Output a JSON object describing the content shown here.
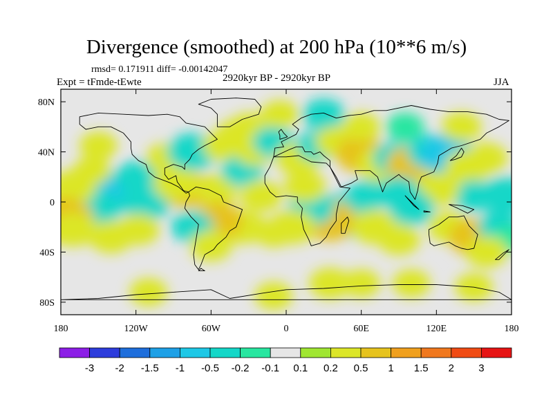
{
  "chart_data": {
    "type": "heatmap",
    "title": "Divergence (smoothed) at 200 hPa (10**6 m/s)",
    "stats_text": "rmsd= 0.171911 diff= -0.00142047",
    "experiment_text": "Expt = tFmde-tEwte",
    "period_text": "2920kyr BP - 2920kyr BP",
    "season": "JJA",
    "x_range": [
      -180,
      180
    ],
    "y_range": [
      -90,
      90
    ],
    "x_ticks": [
      {
        "value": -180,
        "label": "180"
      },
      {
        "value": -120,
        "label": "120W"
      },
      {
        "value": -60,
        "label": "60W"
      },
      {
        "value": 0,
        "label": "0"
      },
      {
        "value": 60,
        "label": "60E"
      },
      {
        "value": 120,
        "label": "120E"
      },
      {
        "value": 180,
        "label": "180"
      }
    ],
    "y_ticks": [
      {
        "value": 80,
        "label": "80N"
      },
      {
        "value": 40,
        "label": "40N"
      },
      {
        "value": 0,
        "label": "0"
      },
      {
        "value": -40,
        "label": "40S"
      },
      {
        "value": -80,
        "label": "80S"
      }
    ],
    "colorbar": {
      "levels": [
        "-3",
        "-2",
        "-1.5",
        "-1",
        "-0.5",
        "-0.2",
        "-0.1",
        "0.1",
        "0.2",
        "0.5",
        "1",
        "1.5",
        "2",
        "3"
      ],
      "colors": [
        "#8c1ee6",
        "#2d3cdc",
        "#1e6edc",
        "#1ea0e6",
        "#1ec8e6",
        "#14d7c8",
        "#28e6a0",
        "#e6e6e6",
        "#a0e632",
        "#dce628",
        "#e6c31e",
        "#f0a01e",
        "#f0781e",
        "#f04b14",
        "#e61414"
      ]
    },
    "fields": [
      {
        "lon": -140,
        "lat": 8,
        "value": -0.6
      },
      {
        "lon": -150,
        "lat": -5,
        "value": -0.4
      },
      {
        "lon": -112,
        "lat": 0,
        "value": -0.5
      },
      {
        "lon": -120,
        "lat": 20,
        "value": -0.3
      },
      {
        "lon": -80,
        "lat": 10,
        "value": 0.5
      },
      {
        "lon": -88,
        "lat": 15,
        "value": 0.4
      },
      {
        "lon": -55,
        "lat": 10,
        "value": 0.3
      },
      {
        "lon": -170,
        "lat": 12,
        "value": 0.4
      },
      {
        "lon": -178,
        "lat": -15,
        "value": 0.8
      },
      {
        "lon": -170,
        "lat": -22,
        "value": 0.4
      },
      {
        "lon": -140,
        "lat": -28,
        "value": 0.35
      },
      {
        "lon": -118,
        "lat": -22,
        "value": 0.3
      },
      {
        "lon": -155,
        "lat": 25,
        "value": 0.2
      },
      {
        "lon": -150,
        "lat": 45,
        "value": 0.2
      },
      {
        "lon": -95,
        "lat": 35,
        "value": 0.3
      },
      {
        "lon": -75,
        "lat": 40,
        "value": -0.5
      },
      {
        "lon": -50,
        "lat": 45,
        "value": 0.3
      },
      {
        "lon": -40,
        "lat": 55,
        "value": 0.2
      },
      {
        "lon": -30,
        "lat": 60,
        "value": 0.2
      },
      {
        "lon": -35,
        "lat": 25,
        "value": -0.3
      },
      {
        "lon": -25,
        "lat": 40,
        "value": 0.2
      },
      {
        "lon": -10,
        "lat": 48,
        "value": -0.3
      },
      {
        "lon": -5,
        "lat": 70,
        "value": 0.2
      },
      {
        "lon": 30,
        "lat": 70,
        "value": -0.3
      },
      {
        "lon": 10,
        "lat": 35,
        "value": 0.4
      },
      {
        "lon": 25,
        "lat": 45,
        "value": -0.3
      },
      {
        "lon": 40,
        "lat": 48,
        "value": 0.3
      },
      {
        "lon": 60,
        "lat": 38,
        "value": 0.5
      },
      {
        "lon": 75,
        "lat": 30,
        "value": 0.4
      },
      {
        "lon": 88,
        "lat": 35,
        "value": -0.4
      },
      {
        "lon": 100,
        "lat": 30,
        "value": 0.5
      },
      {
        "lon": 115,
        "lat": 40,
        "value": -0.4
      },
      {
        "lon": 128,
        "lat": 38,
        "value": -0.6
      },
      {
        "lon": 145,
        "lat": 28,
        "value": 0.4
      },
      {
        "lon": 160,
        "lat": 35,
        "value": 0.3
      },
      {
        "lon": 140,
        "lat": 60,
        "value": 0.25
      },
      {
        "lon": 60,
        "lat": 60,
        "value": 0.2
      },
      {
        "lon": 95,
        "lat": 60,
        "value": -0.2
      },
      {
        "lon": 175,
        "lat": 5,
        "value": -0.5
      },
      {
        "lon": 150,
        "lat": 5,
        "value": -0.3
      },
      {
        "lon": 120,
        "lat": 10,
        "value": 0.4
      },
      {
        "lon": 100,
        "lat": -5,
        "value": -0.4
      },
      {
        "lon": 90,
        "lat": 8,
        "value": -0.3
      },
      {
        "lon": 65,
        "lat": 5,
        "value": -0.3
      },
      {
        "lon": 55,
        "lat": -15,
        "value": -0.4
      },
      {
        "lon": 45,
        "lat": -8,
        "value": -0.5
      },
      {
        "lon": 35,
        "lat": -15,
        "value": 0.6
      },
      {
        "lon": 20,
        "lat": -5,
        "value": -0.4
      },
      {
        "lon": 15,
        "lat": 12,
        "value": 0.3
      },
      {
        "lon": 5,
        "lat": -20,
        "value": 0.4
      },
      {
        "lon": -10,
        "lat": -25,
        "value": 0.2
      },
      {
        "lon": -20,
        "lat": 5,
        "value": 0.3
      },
      {
        "lon": -35,
        "lat": -20,
        "value": 0.4
      },
      {
        "lon": -55,
        "lat": -15,
        "value": 0.5
      },
      {
        "lon": -75,
        "lat": -20,
        "value": -0.3
      },
      {
        "lon": -60,
        "lat": -35,
        "value": 0.3
      },
      {
        "lon": 70,
        "lat": -20,
        "value": 0.4
      },
      {
        "lon": 90,
        "lat": -30,
        "value": 0.3
      },
      {
        "lon": 130,
        "lat": -20,
        "value": 0.3
      },
      {
        "lon": 150,
        "lat": -28,
        "value": 0.5
      },
      {
        "lon": 170,
        "lat": -20,
        "value": -0.3
      },
      {
        "lon": 178,
        "lat": -30,
        "value": -0.2
      },
      {
        "lon": 160,
        "lat": -40,
        "value": 0.3
      },
      {
        "lon": 35,
        "lat": -65,
        "value": 0.3
      },
      {
        "lon": 60,
        "lat": -65,
        "value": 0.2
      },
      {
        "lon": 100,
        "lat": -65,
        "value": 0.2
      },
      {
        "lon": 150,
        "lat": -68,
        "value": 0.2
      },
      {
        "lon": -10,
        "lat": -75,
        "value": 0.2
      },
      {
        "lon": -110,
        "lat": -72,
        "value": 0.2
      }
    ],
    "continents": [
      [
        [
          -165,
          68
        ],
        [
          -150,
          71
        ],
        [
          -130,
          70
        ],
        [
          -110,
          69
        ],
        [
          -95,
          70
        ],
        [
          -85,
          68
        ],
        [
          -80,
          63
        ],
        [
          -65,
          60
        ],
        [
          -60,
          55
        ],
        [
          -55,
          50
        ],
        [
          -65,
          45
        ],
        [
          -70,
          42
        ],
        [
          -75,
          38
        ],
        [
          -77,
          34
        ],
        [
          -81,
          30
        ],
        [
          -81,
          26
        ],
        [
          -83,
          28
        ],
        [
          -90,
          30
        ],
        [
          -97,
          27
        ],
        [
          -97,
          22
        ],
        [
          -94,
          18
        ],
        [
          -88,
          21
        ],
        [
          -87,
          16
        ],
        [
          -84,
          12
        ],
        [
          -82,
          9
        ],
        [
          -78,
          8
        ],
        [
          -80,
          7
        ],
        [
          -86,
          12
        ],
        [
          -92,
          15
        ],
        [
          -105,
          20
        ],
        [
          -110,
          24
        ],
        [
          -112,
          30
        ],
        [
          -118,
          33
        ],
        [
          -123,
          38
        ],
        [
          -124,
          43
        ],
        [
          -124,
          48
        ],
        [
          -130,
          55
        ],
        [
          -140,
          60
        ],
        [
          -150,
          60
        ],
        [
          -160,
          58
        ],
        [
          -165,
          62
        ]
      ],
      [
        [
          -78,
          8
        ],
        [
          -72,
          12
        ],
        [
          -62,
          10
        ],
        [
          -52,
          5
        ],
        [
          -50,
          0
        ],
        [
          -45,
          -2
        ],
        [
          -35,
          -6
        ],
        [
          -37,
          -12
        ],
        [
          -40,
          -20
        ],
        [
          -45,
          -23
        ],
        [
          -48,
          -28
        ],
        [
          -55,
          -34
        ],
        [
          -58,
          -38
        ],
        [
          -65,
          -42
        ],
        [
          -68,
          -50
        ],
        [
          -70,
          -54
        ],
        [
          -73,
          -50
        ],
        [
          -74,
          -42
        ],
        [
          -72,
          -30
        ],
        [
          -70,
          -18
        ],
        [
          -76,
          -12
        ],
        [
          -81,
          -5
        ],
        [
          -80,
          0
        ],
        [
          -77,
          5
        ]
      ],
      [
        [
          -10,
          36
        ],
        [
          0,
          36
        ],
        [
          10,
          37
        ],
        [
          20,
          32
        ],
        [
          32,
          31
        ],
        [
          35,
          28
        ],
        [
          43,
          12
        ],
        [
          51,
          11
        ],
        [
          42,
          0
        ],
        [
          40,
          -10
        ],
        [
          40,
          -15
        ],
        [
          35,
          -22
        ],
        [
          32,
          -28
        ],
        [
          27,
          -33
        ],
        [
          20,
          -35
        ],
        [
          18,
          -30
        ],
        [
          14,
          -22
        ],
        [
          12,
          -12
        ],
        [
          13,
          -5
        ],
        [
          9,
          0
        ],
        [
          9,
          4
        ],
        [
          0,
          5
        ],
        [
          -8,
          4
        ],
        [
          -13,
          8
        ],
        [
          -17,
          15
        ],
        [
          -17,
          21
        ],
        [
          -13,
          28
        ]
      ],
      [
        [
          -10,
          36
        ],
        [
          -9,
          43
        ],
        [
          -2,
          44
        ],
        [
          -4,
          48
        ],
        [
          2,
          51
        ],
        [
          8,
          54
        ],
        [
          10,
          58
        ],
        [
          5,
          62
        ],
        [
          12,
          67
        ],
        [
          20,
          70
        ],
        [
          30,
          71
        ],
        [
          40,
          67
        ],
        [
          50,
          69
        ],
        [
          60,
          70
        ],
        [
          70,
          73
        ],
        [
          80,
          73
        ],
        [
          100,
          77
        ],
        [
          115,
          74
        ],
        [
          130,
          72
        ],
        [
          145,
          72
        ],
        [
          160,
          70
        ],
        [
          170,
          66
        ],
        [
          178,
          65
        ],
        [
          170,
          60
        ],
        [
          160,
          55
        ],
        [
          155,
          50
        ],
        [
          140,
          45
        ],
        [
          132,
          43
        ],
        [
          127,
          40
        ],
        [
          122,
          37
        ],
        [
          121,
          31
        ],
        [
          118,
          24
        ],
        [
          108,
          20
        ],
        [
          106,
          15
        ],
        [
          105,
          9
        ],
        [
          103,
          2
        ],
        [
          99,
          8
        ],
        [
          98,
          16
        ],
        [
          92,
          20
        ],
        [
          90,
          22
        ],
        [
          80,
          15
        ],
        [
          77,
          8
        ],
        [
          73,
          20
        ],
        [
          67,
          25
        ],
        [
          58,
          25
        ],
        [
          55,
          25
        ],
        [
          57,
          18
        ],
        [
          52,
          15
        ],
        [
          44,
          12
        ],
        [
          40,
          20
        ],
        [
          35,
          28
        ],
        [
          35,
          33
        ],
        [
          30,
          37
        ],
        [
          27,
          40
        ],
        [
          22,
          38
        ],
        [
          20,
          40
        ],
        [
          15,
          40
        ],
        [
          13,
          44
        ],
        [
          8,
          44
        ],
        [
          3,
          42
        ]
      ],
      [
        [
          114,
          -22
        ],
        [
          122,
          -18
        ],
        [
          130,
          -12
        ],
        [
          137,
          -12
        ],
        [
          142,
          -11
        ],
        [
          146,
          -19
        ],
        [
          153,
          -26
        ],
        [
          150,
          -37
        ],
        [
          145,
          -38
        ],
        [
          140,
          -37
        ],
        [
          135,
          -35
        ],
        [
          130,
          -32
        ],
        [
          118,
          -35
        ],
        [
          115,
          -33
        ],
        [
          114,
          -26
        ]
      ],
      [
        [
          -180,
          -78
        ],
        [
          -150,
          -77
        ],
        [
          -120,
          -74
        ],
        [
          -90,
          -72
        ],
        [
          -60,
          -70
        ],
        [
          -45,
          -77
        ],
        [
          -20,
          -73
        ],
        [
          0,
          -70
        ],
        [
          30,
          -69
        ],
        [
          60,
          -67
        ],
        [
          90,
          -66
        ],
        [
          120,
          -66
        ],
        [
          150,
          -68
        ],
        [
          170,
          -72
        ],
        [
          180,
          -78
        ]
      ],
      [
        [
          -55,
          60
        ],
        [
          -45,
          60
        ],
        [
          -35,
          66
        ],
        [
          -22,
          70
        ],
        [
          -20,
          76
        ],
        [
          -25,
          82
        ],
        [
          -40,
          83
        ],
        [
          -60,
          82
        ],
        [
          -70,
          78
        ],
        [
          -60,
          75
        ],
        [
          -55,
          70
        ]
      ],
      [
        [
          44,
          -25
        ],
        [
          47,
          -25
        ],
        [
          50,
          -15
        ],
        [
          49,
          -12
        ],
        [
          44,
          -17
        ]
      ],
      [
        [
          -5,
          50
        ],
        [
          1,
          52
        ],
        [
          -2,
          55
        ],
        [
          -4,
          58
        ],
        [
          -6,
          56
        ],
        [
          -5,
          53
        ]
      ],
      [
        [
          131,
          33
        ],
        [
          135,
          34
        ],
        [
          140,
          36
        ],
        [
          142,
          40
        ],
        [
          140,
          43
        ],
        [
          136,
          37
        ]
      ],
      [
        [
          95,
          5
        ],
        [
          105,
          -5
        ],
        [
          106,
          -6
        ],
        [
          102,
          -3
        ]
      ],
      [
        [
          110,
          -7
        ],
        [
          115,
          -8
        ],
        [
          110,
          -8
        ]
      ],
      [
        [
          130,
          -2
        ],
        [
          141,
          -3
        ],
        [
          150,
          -6
        ],
        [
          145,
          -9
        ],
        [
          137,
          -5
        ]
      ],
      [
        [
          -70,
          -55
        ],
        [
          -65,
          -55
        ],
        [
          -68,
          -53
        ]
      ],
      [
        [
          167,
          -46
        ],
        [
          173,
          -41
        ],
        [
          178,
          -38
        ],
        [
          174,
          -42
        ],
        [
          170,
          -46
        ]
      ]
    ]
  }
}
